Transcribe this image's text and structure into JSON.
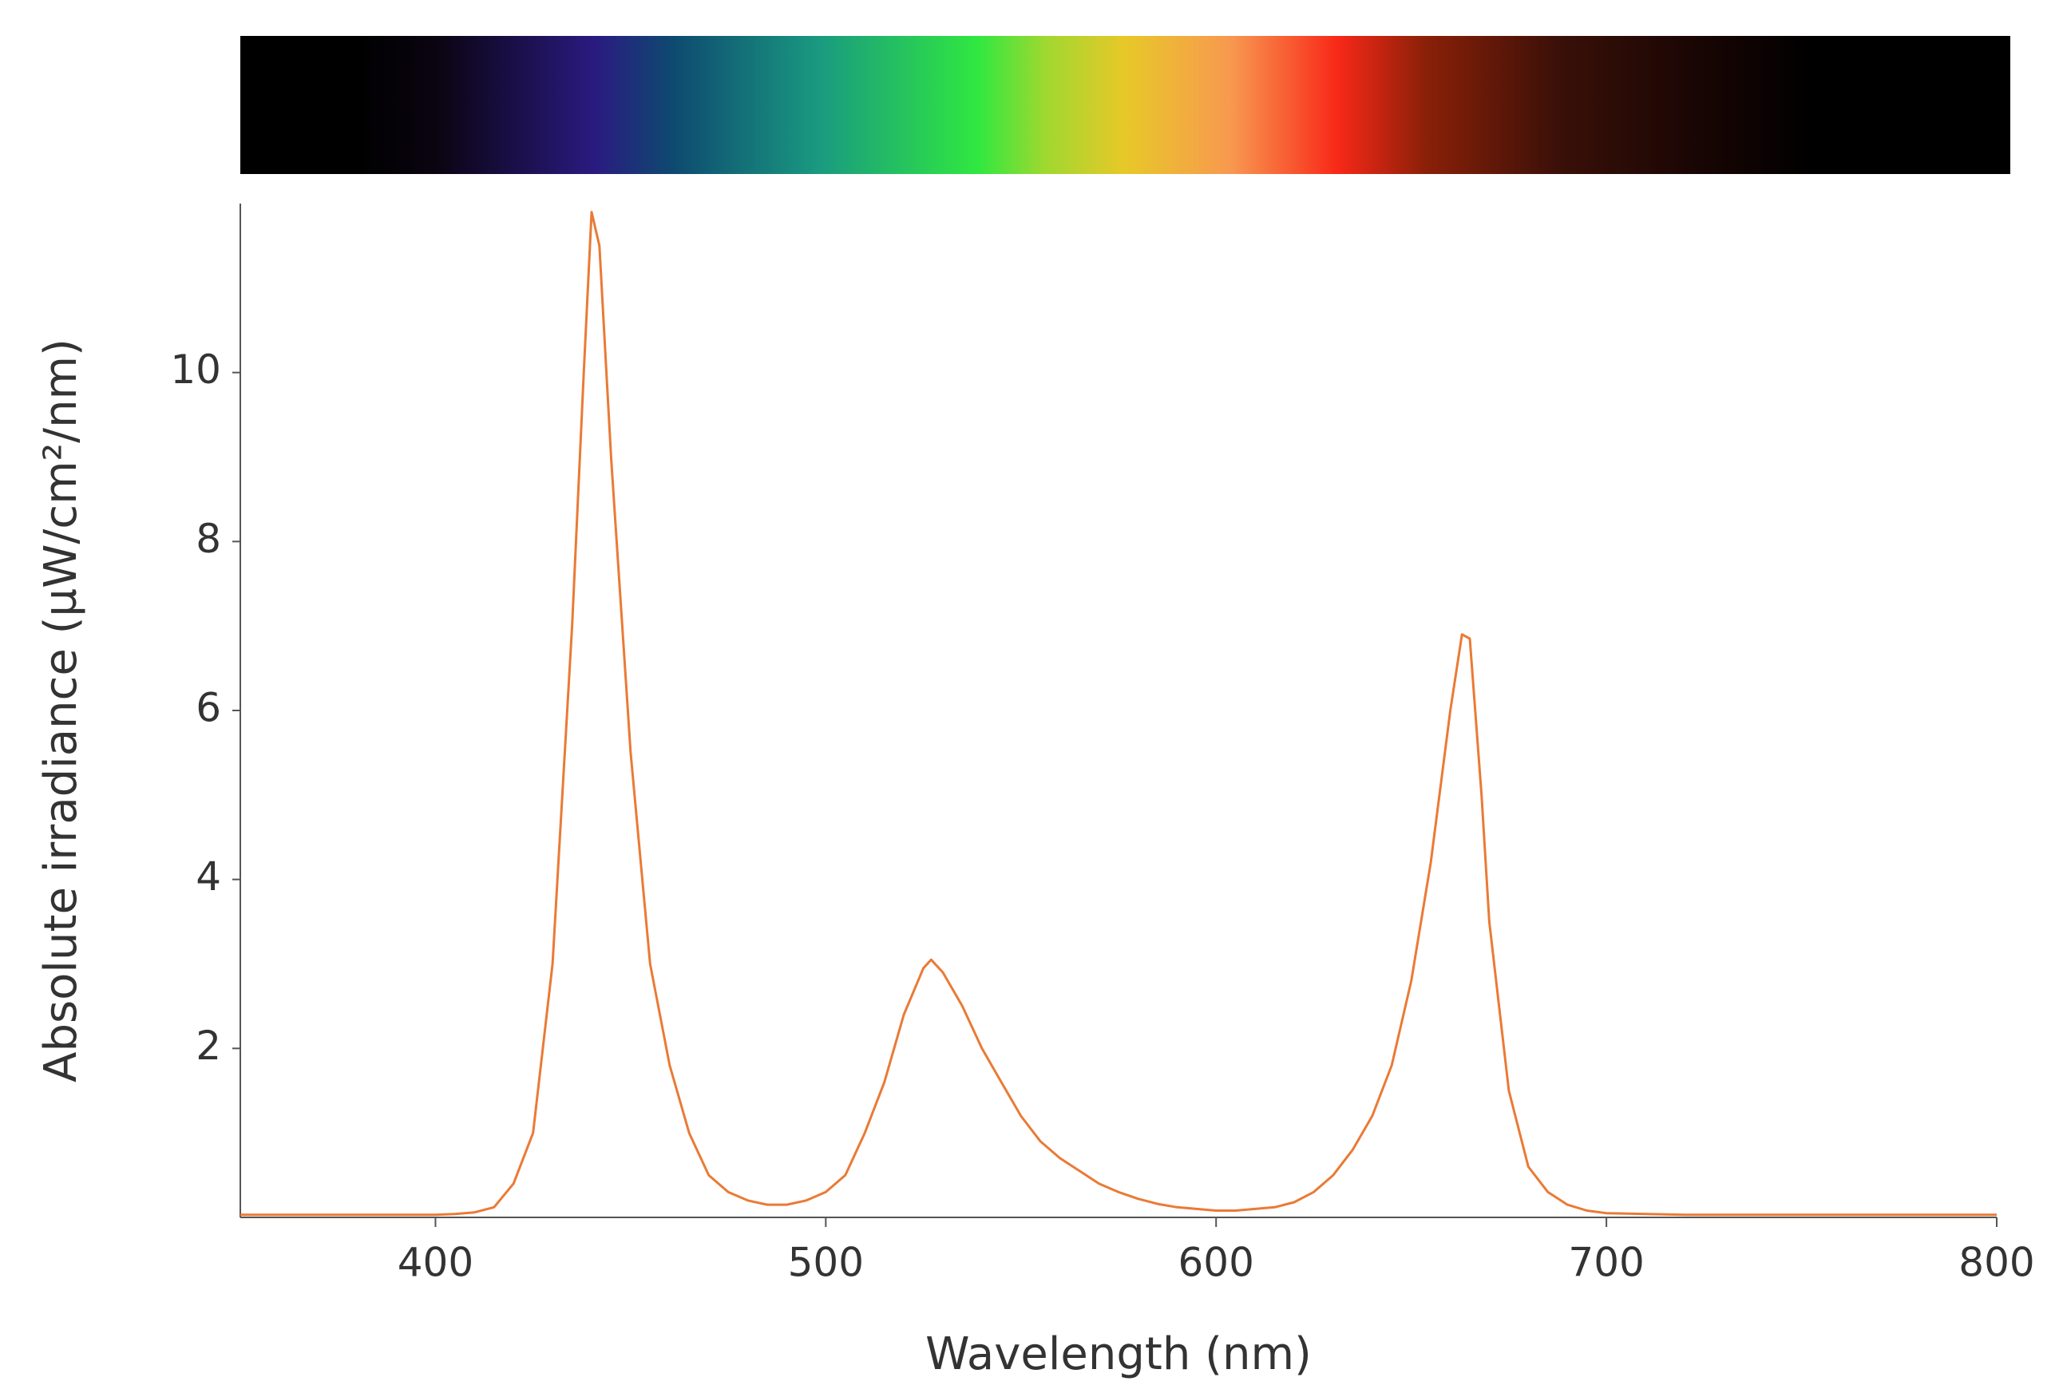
{
  "chart_data": {
    "type": "line",
    "x_label": "Wavelength (nm)",
    "y_label": "Absolute irradiance (µW/cm²/nm)",
    "color": "#ea7a35",
    "x": [
      350,
      360,
      370,
      380,
      390,
      400,
      405,
      410,
      415,
      420,
      425,
      430,
      435,
      438,
      440,
      442,
      445,
      450,
      455,
      460,
      465,
      470,
      475,
      480,
      485,
      490,
      495,
      500,
      505,
      510,
      515,
      520,
      525,
      527,
      530,
      535,
      540,
      545,
      550,
      555,
      560,
      565,
      570,
      575,
      580,
      585,
      590,
      595,
      600,
      605,
      610,
      615,
      620,
      625,
      630,
      635,
      640,
      645,
      650,
      655,
      660,
      663,
      665,
      668,
      670,
      675,
      680,
      685,
      690,
      695,
      700,
      710,
      720,
      730,
      740,
      750,
      760,
      770,
      780,
      790,
      800
    ],
    "values": [
      0.03,
      0.03,
      0.03,
      0.03,
      0.03,
      0.03,
      0.04,
      0.06,
      0.12,
      0.4,
      1.0,
      3.0,
      7.0,
      10.0,
      11.9,
      11.5,
      9.0,
      5.5,
      3.0,
      1.8,
      1.0,
      0.5,
      0.3,
      0.2,
      0.15,
      0.15,
      0.2,
      0.3,
      0.5,
      1.0,
      1.6,
      2.4,
      2.95,
      3.05,
      2.9,
      2.5,
      2.0,
      1.6,
      1.2,
      0.9,
      0.7,
      0.55,
      0.4,
      0.3,
      0.22,
      0.16,
      0.12,
      0.1,
      0.08,
      0.08,
      0.1,
      0.12,
      0.18,
      0.3,
      0.5,
      0.8,
      1.2,
      1.8,
      2.8,
      4.2,
      6.0,
      6.9,
      6.85,
      5.0,
      3.5,
      1.5,
      0.6,
      0.3,
      0.15,
      0.08,
      0.05,
      0.04,
      0.03,
      0.03,
      0.03,
      0.03,
      0.03,
      0.03,
      0.03,
      0.03,
      0.03
    ],
    "xlim": [
      350,
      800
    ],
    "xticks": [
      400,
      500,
      600,
      700,
      800
    ],
    "ylim": [
      0,
      12
    ],
    "yticks": [
      2,
      4,
      6,
      8,
      10
    ],
    "grid": false
  }
}
